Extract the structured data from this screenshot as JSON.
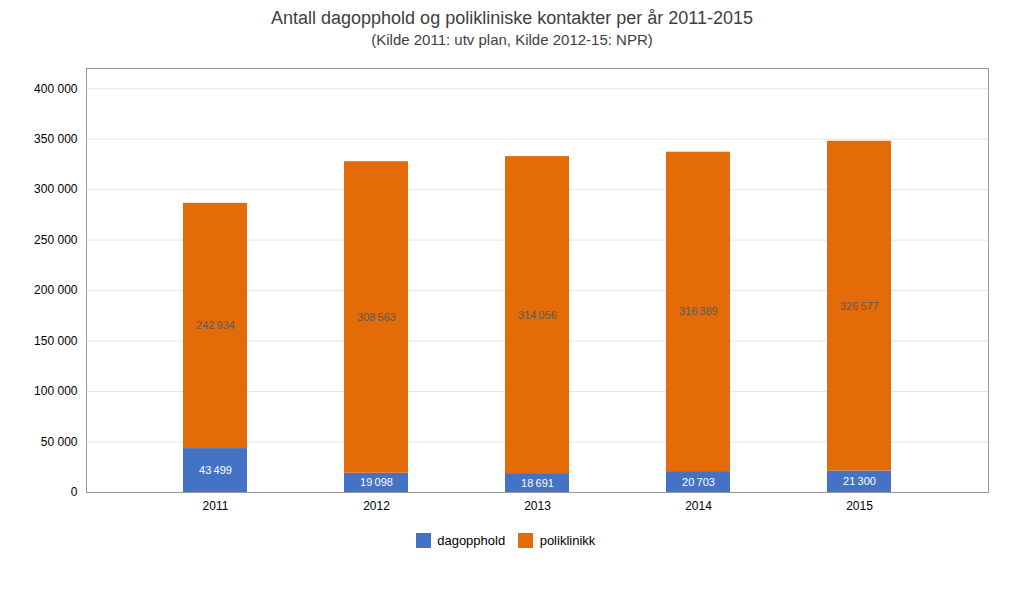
{
  "chart_data": {
    "type": "bar",
    "title": "Antall dagopphold og polikliniske kontakter per år 2011-2015",
    "subtitle": "(Kilde 2011:  utv plan, Kilde 2012-15: NPR)",
    "categories": [
      "2011",
      "2012",
      "2013",
      "2014",
      "2015"
    ],
    "series": [
      {
        "name": "dagopphold",
        "color": "#4472C4",
        "values": [
          43499,
          19098,
          18691,
          20703,
          21300
        ],
        "value_labels": [
          "43 499",
          "19 098",
          "18 691",
          "20 703",
          "21 300"
        ]
      },
      {
        "name": "poliklinikk",
        "color": "#E36C09",
        "values": [
          242934,
          308563,
          314056,
          316389,
          326577
        ],
        "value_labels": [
          "242 934",
          "308 563",
          "314 056",
          "316 389",
          "326 577"
        ]
      }
    ],
    "stacked": true,
    "data_labels": true,
    "ylim": [
      0,
      420000
    ],
    "yticks": [
      0,
      {
        "value": 50000,
        "label": "50 000"
      },
      {
        "value": 100000,
        "label": "100 000"
      },
      {
        "value": 150000,
        "label": "150 000"
      },
      {
        "value": 200000,
        "label": "200 000"
      },
      {
        "value": 250000,
        "label": "250 000"
      },
      {
        "value": 300000,
        "label": "300 000"
      },
      {
        "value": 350000,
        "label": "350 000"
      },
      {
        "value": 400000,
        "label": "400 000"
      }
    ],
    "grid": true,
    "legend": "bottom"
  }
}
